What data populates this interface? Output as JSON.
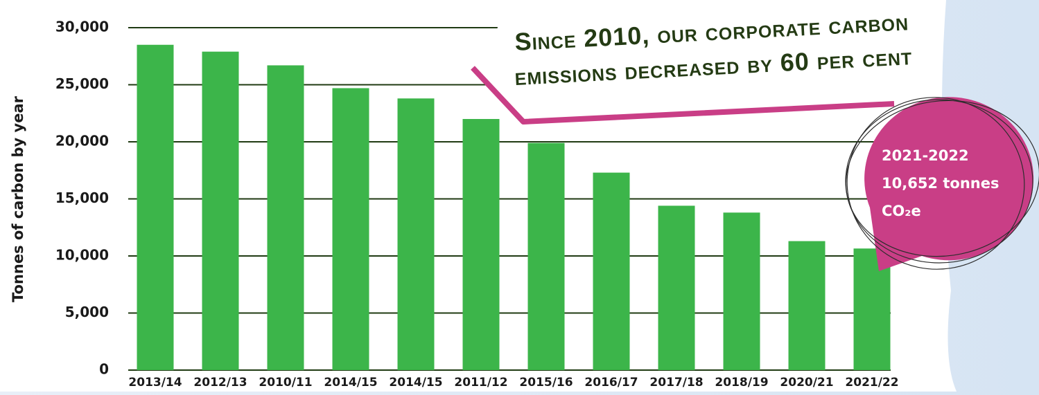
{
  "chart_data": {
    "type": "bar",
    "y_label": "Tonnes of carbon by year",
    "categories": [
      "2013/14",
      "2012/13",
      "2010/11",
      "2014/15",
      "2014/15",
      "2011/12",
      "2015/16",
      "2016/17",
      "2017/18",
      "2018/19",
      "2020/21",
      "2021/22"
    ],
    "values": [
      28500,
      27900,
      26700,
      24700,
      23800,
      22000,
      19900,
      17300,
      14400,
      13800,
      11300,
      10652
    ],
    "color": "#3cb54a",
    "ylim": [
      0,
      30000
    ],
    "yticks": [
      {
        "value": 0,
        "label": "0"
      },
      {
        "value": 5000,
        "label": "5,000"
      },
      {
        "value": 10000,
        "label": "10,000"
      },
      {
        "value": 15000,
        "label": "15,000"
      },
      {
        "value": 20000,
        "label": "20,000"
      },
      {
        "value": 25000,
        "label": "25,000"
      },
      {
        "value": 30000,
        "label": "30,000"
      }
    ],
    "grid": true,
    "headline": [
      "Since 2010, our corporate carbon",
      "emissions decreased by 60 per cent"
    ],
    "callout": [
      "2021-2022",
      "10,652 tonnes",
      "CO₂e"
    ]
  }
}
